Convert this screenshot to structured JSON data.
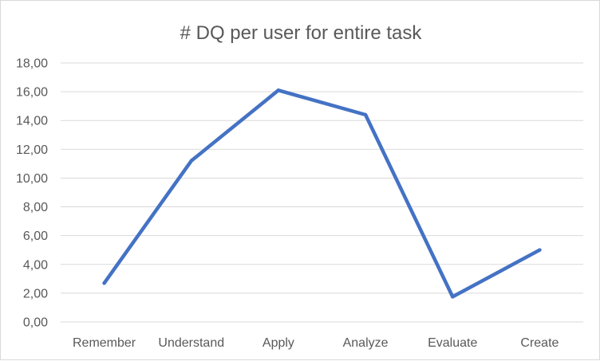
{
  "chart_data": {
    "type": "line",
    "title": "# DQ per user for entire task",
    "xlabel": "",
    "ylabel": "",
    "categories": [
      "Remember",
      "Understand",
      "Apply",
      "Analyze",
      "Evaluate",
      "Create"
    ],
    "series": [
      {
        "values": [
          2.7,
          11.2,
          16.1,
          14.4,
          1.75,
          5.0
        ],
        "color": "#4472c4"
      }
    ],
    "ylim": [
      0,
      18
    ],
    "yticks": [
      "0,00",
      "2,00",
      "4,00",
      "6,00",
      "8,00",
      "10,00",
      "12,00",
      "14,00",
      "16,00",
      "18,00"
    ],
    "grid": true,
    "legend": "none"
  }
}
